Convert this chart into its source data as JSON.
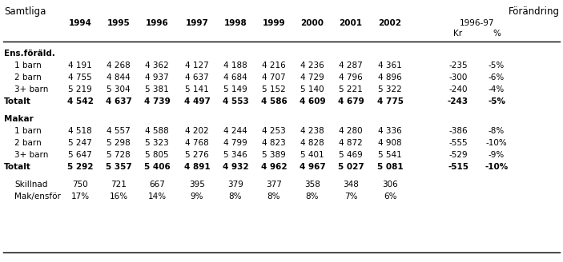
{
  "title": "Samtliga",
  "forandring_header": "Förändring",
  "forandring_sub": "1996-97",
  "col_headers_kr": "Kr",
  "col_headers_pct": "%",
  "year_headers": [
    "1994",
    "1995",
    "1996",
    "1997",
    "1998",
    "1999",
    "2000",
    "2001",
    "2002"
  ],
  "sections": [
    {
      "header": "Ens.föräld.",
      "rows": [
        {
          "label": "1 barn",
          "bold": false,
          "values": [
            "4 191",
            "4 268",
            "4 362",
            "4 127",
            "4 188",
            "4 216",
            "4 236",
            "4 287",
            "4 361",
            "-235",
            "-5%"
          ]
        },
        {
          "label": "2 barn",
          "bold": false,
          "values": [
            "4 755",
            "4 844",
            "4 937",
            "4 637",
            "4 684",
            "4 707",
            "4 729",
            "4 796",
            "4 896",
            "-300",
            "-6%"
          ]
        },
        {
          "label": "3+ barn",
          "bold": false,
          "values": [
            "5 219",
            "5 304",
            "5 381",
            "5 141",
            "5 149",
            "5 152",
            "5 140",
            "5 221",
            "5 322",
            "-240",
            "-4%"
          ]
        },
        {
          "label": "Totalt",
          "bold": true,
          "values": [
            "4 542",
            "4 637",
            "4 739",
            "4 497",
            "4 553",
            "4 586",
            "4 609",
            "4 679",
            "4 775",
            "-243",
            "-5%"
          ]
        }
      ]
    },
    {
      "header": "Makar",
      "rows": [
        {
          "label": "1 barn",
          "bold": false,
          "values": [
            "4 518",
            "4 557",
            "4 588",
            "4 202",
            "4 244",
            "4 253",
            "4 238",
            "4 280",
            "4 336",
            "-386",
            "-8%"
          ]
        },
        {
          "label": "2 barn",
          "bold": false,
          "values": [
            "5 247",
            "5 298",
            "5 323",
            "4 768",
            "4 799",
            "4 823",
            "4 828",
            "4 872",
            "4 908",
            "-555",
            "-10%"
          ]
        },
        {
          "label": "3+ barn",
          "bold": false,
          "values": [
            "5 647",
            "5 728",
            "5 805",
            "5 276",
            "5 346",
            "5 389",
            "5 401",
            "5 469",
            "5 541",
            "-529",
            "-9%"
          ]
        },
        {
          "label": "Totalt",
          "bold": true,
          "values": [
            "5 292",
            "5 357",
            "5 406",
            "4 891",
            "4 932",
            "4 962",
            "4 967",
            "5 027",
            "5 081",
            "-515",
            "-10%"
          ]
        }
      ]
    },
    {
      "header": null,
      "rows": [
        {
          "label": "Skillnad",
          "bold": false,
          "values": [
            "750",
            "721",
            "667",
            "395",
            "379",
            "377",
            "358",
            "348",
            "306",
            "",
            ""
          ]
        },
        {
          "label": "Mak/ensför",
          "bold": false,
          "values": [
            "17%",
            "16%",
            "14%",
            "9%",
            "8%",
            "8%",
            "8%",
            "7%",
            "6%",
            "",
            ""
          ]
        }
      ]
    }
  ],
  "bg_color": "#ffffff",
  "font_size": 7.5,
  "title_font_size": 8.5
}
